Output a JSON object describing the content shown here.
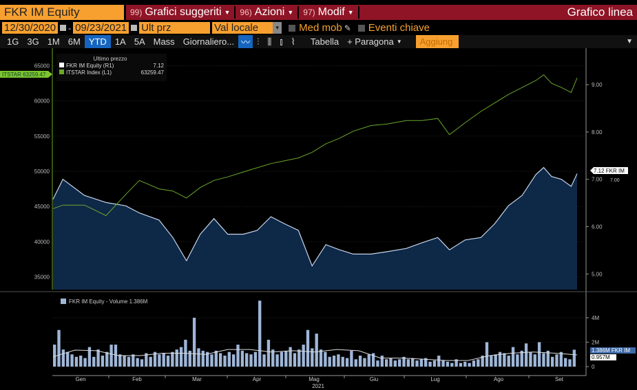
{
  "header": {
    "ticker": "FKR IM Equity",
    "menus": [
      {
        "num": "99)",
        "label": "Grafici suggeriti"
      },
      {
        "num": "96)",
        "label": "Azioni"
      },
      {
        "num": "97)",
        "label": "Modif"
      }
    ],
    "chart_type_label": "Grafico linea"
  },
  "controls": {
    "start_date": "12/30/2020",
    "end_date": "09/23/2021",
    "separator": "-",
    "price_field": "Ult prz",
    "currency": "Val locale",
    "moving_avg": "Med mob",
    "key_events": "Eventi chiave"
  },
  "toolbar": {
    "periods": [
      "1G",
      "3G",
      "1M",
      "6M",
      "YTD",
      "1A",
      "5A",
      "Mass"
    ],
    "selected_period": "YTD",
    "frequency": "Giornaliero...",
    "table": "Tabella",
    "compare": "+ Paragona",
    "add": "Aggiung"
  },
  "colors": {
    "accent": "#f7a030",
    "menu_bar": "#8e1426",
    "selected": "#1565c0",
    "fkr_line": "#c8d6ea",
    "fkr_fill": "#0e2848",
    "itstar_line": "#6aa82a",
    "volume": "#9fb6d8"
  },
  "chart_data": [
    {
      "type": "line",
      "legend_title": "Ultimo prezzo",
      "legend": [
        {
          "name": "FKR IM Equity  (R1)",
          "value": "7.12"
        },
        {
          "name": "ITSTAR Index  (L1)",
          "value": "63259.47"
        }
      ],
      "left_axis": {
        "ticks": [
          "65000",
          "60000",
          "55000",
          "50000",
          "45000",
          "40000",
          "35000"
        ],
        "range": [
          33200,
          67000
        ]
      },
      "right_axis": {
        "ticks": [
          "9.00",
          "8.00",
          "7.00",
          "6.00",
          "5.00"
        ],
        "range": [
          4.67,
          9.7
        ]
      },
      "left_tag": "ITSTAR 63259.47",
      "right_tag": "7.12 FKR IM",
      "right_tag_sub": "7.00",
      "dates": [
        "2020-12-30",
        "2021-01-04",
        "2021-01-15",
        "2021-01-26",
        "2021-02-05",
        "2021-02-12",
        "2021-02-22",
        "2021-03-01",
        "2021-03-08",
        "2021-03-15",
        "2021-03-22",
        "2021-03-29",
        "2021-04-06",
        "2021-04-13",
        "2021-04-20",
        "2021-04-27",
        "2021-05-04",
        "2021-05-11",
        "2021-05-18",
        "2021-05-25",
        "2021-06-01",
        "2021-06-10",
        "2021-06-18",
        "2021-06-28",
        "2021-07-06",
        "2021-07-14",
        "2021-07-20",
        "2021-07-28",
        "2021-08-05",
        "2021-08-12",
        "2021-08-19",
        "2021-08-26",
        "2021-09-02",
        "2021-09-06",
        "2021-09-10",
        "2021-09-15",
        "2021-09-20",
        "2021-09-23"
      ],
      "series": [
        {
          "name": "FKR IM Equity",
          "axis": "right",
          "values": [
            6.58,
            7.0,
            6.66,
            6.51,
            6.44,
            6.29,
            6.14,
            5.77,
            5.28,
            5.84,
            6.17,
            5.84,
            5.84,
            5.92,
            6.21,
            6.06,
            5.92,
            5.17,
            5.62,
            5.51,
            5.42,
            5.42,
            5.47,
            5.54,
            5.66,
            5.77,
            5.51,
            5.72,
            5.77,
            6.06,
            6.44,
            6.66,
            7.1,
            7.25,
            7.06,
            7.0,
            6.85,
            7.12
          ]
        },
        {
          "name": "ITSTAR Index",
          "axis": "left",
          "values": [
            44700,
            45200,
            45200,
            43700,
            46700,
            48700,
            47500,
            47200,
            46200,
            47700,
            48700,
            49200,
            49900,
            50500,
            51100,
            51500,
            51900,
            52700,
            53900,
            54700,
            55700,
            56500,
            56700,
            57200,
            57200,
            57500,
            55200,
            56900,
            58500,
            59700,
            60900,
            61900,
            62900,
            63700,
            62500,
            61900,
            61200,
            63259.47
          ]
        }
      ]
    },
    {
      "type": "bar",
      "legend": "FKR IM Equity - Volume 1.386M",
      "y_ticks": [
        "4M",
        "2M",
        "0"
      ],
      "range": [
        0,
        5.8
      ],
      "x_ticks": [
        "Gen",
        "Feb",
        "Mar",
        "Apr",
        "Mag",
        "Giu",
        "Lug",
        "Ago",
        "Set"
      ],
      "x_year": "2021",
      "tag": "1.386M FKR IM",
      "tag_sub": "0.957M",
      "volume_m": [
        1.8,
        3.0,
        1.4,
        1.2,
        1.0,
        0.8,
        0.9,
        0.7,
        1.6,
        0.8,
        1.4,
        0.9,
        1.2,
        1.8,
        1.8,
        1.0,
        0.9,
        0.8,
        1.0,
        0.7,
        0.6,
        1.1,
        0.8,
        1.2,
        1.0,
        1.1,
        0.9,
        1.2,
        1.4,
        1.6,
        2.2,
        1.3,
        4.0,
        1.5,
        1.3,
        1.2,
        1.0,
        1.3,
        1.1,
        0.9,
        1.2,
        1.0,
        1.8,
        1.3,
        1.1,
        1.0,
        1.2,
        5.4,
        1.0,
        2.2,
        1.4,
        1.0,
        1.2,
        1.3,
        1.6,
        1.1,
        1.4,
        1.8,
        3.0,
        1.5,
        2.7,
        1.4,
        1.2,
        0.8,
        0.9,
        1.0,
        0.8,
        0.7,
        1.3,
        0.6,
        0.9,
        0.7,
        1.0,
        1.1,
        0.5,
        0.9,
        0.6,
        0.7,
        0.5,
        0.6,
        0.8,
        0.6,
        0.7,
        0.5,
        0.6,
        0.7,
        0.4,
        0.5,
        0.9,
        0.5,
        0.4,
        0.3,
        0.6,
        0.3,
        0.4,
        0.3,
        0.5,
        0.6,
        0.9,
        2.0,
        0.9,
        1.0,
        1.2,
        1.1,
        0.9,
        1.6,
        1.0,
        1.3,
        1.9,
        1.2,
        1.0,
        2.0,
        1.1,
        1.3,
        0.8,
        1.0,
        1.2,
        0.7,
        0.6,
        1.386
      ],
      "moving_avg_m": [
        0.8,
        1.35,
        1.3,
        0.9,
        0.9,
        1.1,
        1.1,
        1.0,
        1.4,
        1.4,
        1.2,
        1.3,
        1.2,
        1.4,
        1.3,
        0.7,
        0.7,
        0.6,
        0.5,
        0.5,
        0.9,
        1.1,
        1.2,
        1.1,
        0.957
      ]
    }
  ]
}
